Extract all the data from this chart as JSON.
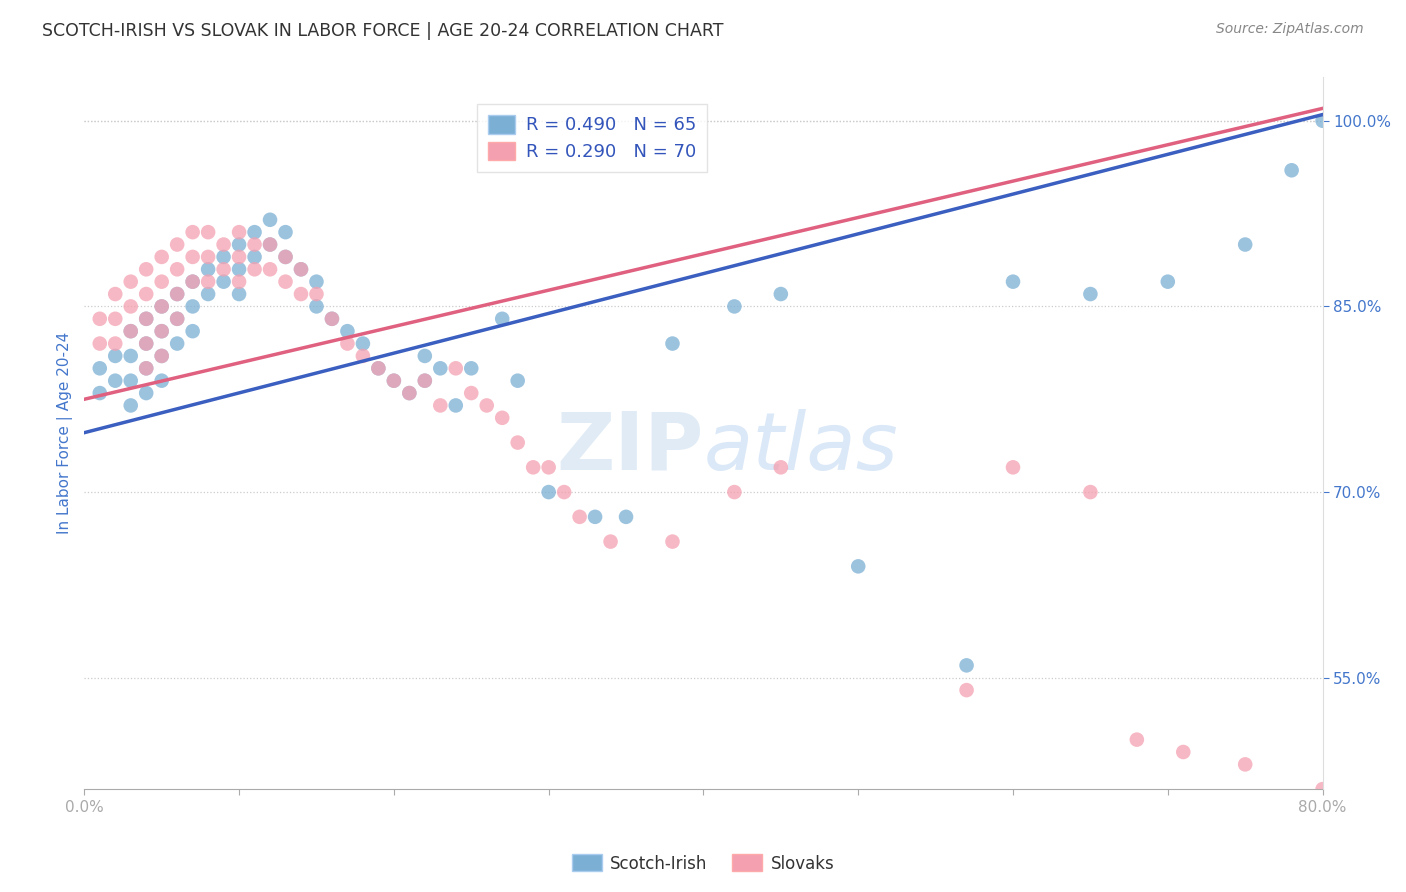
{
  "title": "SCOTCH-IRISH VS SLOVAK IN LABOR FORCE | AGE 20-24 CORRELATION CHART",
  "source": "Source: ZipAtlas.com",
  "ylabel": "In Labor Force | Age 20-24",
  "xlim": [
    0.0,
    0.8
  ],
  "ylim": [
    0.46,
    1.035
  ],
  "x_ticks": [
    0.0,
    0.1,
    0.2,
    0.3,
    0.4,
    0.5,
    0.6,
    0.7,
    0.8
  ],
  "x_tick_labels": [
    "0.0%",
    "",
    "",
    "",
    "",
    "",
    "",
    "",
    "80.0%"
  ],
  "y_ticks": [
    0.55,
    0.7,
    0.85,
    1.0
  ],
  "y_tick_labels": [
    "55.0%",
    "70.0%",
    "85.0%",
    "100.0%"
  ],
  "scotch_irish_color": "#7BAFD4",
  "slovak_color": "#F4A0B0",
  "scotch_irish_line_color": "#3B5FC0",
  "slovak_line_color": "#E06080",
  "legend_R_scotch": "R = 0.490",
  "legend_N_scotch": "N = 65",
  "legend_R_slovak": "R = 0.290",
  "legend_N_slovak": "N = 70",
  "si_line_x0": 0.0,
  "si_line_x1": 0.8,
  "si_line_y0": 0.748,
  "si_line_y1": 1.005,
  "sk_line_x0": 0.0,
  "sk_line_x1": 0.8,
  "sk_line_y0": 0.775,
  "sk_line_y1": 1.01,
  "scotch_irish_x": [
    0.01,
    0.01,
    0.02,
    0.02,
    0.03,
    0.03,
    0.03,
    0.03,
    0.04,
    0.04,
    0.04,
    0.04,
    0.05,
    0.05,
    0.05,
    0.05,
    0.06,
    0.06,
    0.06,
    0.07,
    0.07,
    0.07,
    0.08,
    0.08,
    0.09,
    0.09,
    0.1,
    0.1,
    0.1,
    0.11,
    0.11,
    0.12,
    0.12,
    0.13,
    0.13,
    0.14,
    0.15,
    0.15,
    0.16,
    0.17,
    0.18,
    0.19,
    0.2,
    0.21,
    0.22,
    0.22,
    0.23,
    0.24,
    0.25,
    0.27,
    0.28,
    0.3,
    0.33,
    0.35,
    0.38,
    0.42,
    0.45,
    0.5,
    0.57,
    0.6,
    0.65,
    0.7,
    0.75,
    0.78,
    0.8
  ],
  "scotch_irish_y": [
    0.8,
    0.78,
    0.81,
    0.79,
    0.83,
    0.81,
    0.79,
    0.77,
    0.84,
    0.82,
    0.8,
    0.78,
    0.85,
    0.83,
    0.81,
    0.79,
    0.86,
    0.84,
    0.82,
    0.87,
    0.85,
    0.83,
    0.88,
    0.86,
    0.89,
    0.87,
    0.9,
    0.88,
    0.86,
    0.91,
    0.89,
    0.92,
    0.9,
    0.91,
    0.89,
    0.88,
    0.87,
    0.85,
    0.84,
    0.83,
    0.82,
    0.8,
    0.79,
    0.78,
    0.81,
    0.79,
    0.8,
    0.77,
    0.8,
    0.84,
    0.79,
    0.7,
    0.68,
    0.68,
    0.82,
    0.85,
    0.86,
    0.64,
    0.56,
    0.87,
    0.86,
    0.87,
    0.9,
    0.96,
    1.0
  ],
  "slovak_x": [
    0.01,
    0.01,
    0.02,
    0.02,
    0.02,
    0.03,
    0.03,
    0.03,
    0.04,
    0.04,
    0.04,
    0.04,
    0.04,
    0.05,
    0.05,
    0.05,
    0.05,
    0.05,
    0.06,
    0.06,
    0.06,
    0.06,
    0.07,
    0.07,
    0.07,
    0.08,
    0.08,
    0.08,
    0.09,
    0.09,
    0.1,
    0.1,
    0.1,
    0.11,
    0.11,
    0.12,
    0.12,
    0.13,
    0.13,
    0.14,
    0.14,
    0.15,
    0.16,
    0.17,
    0.18,
    0.19,
    0.2,
    0.21,
    0.22,
    0.23,
    0.24,
    0.25,
    0.26,
    0.27,
    0.28,
    0.29,
    0.3,
    0.31,
    0.32,
    0.34,
    0.38,
    0.42,
    0.45,
    0.57,
    0.6,
    0.65,
    0.68,
    0.71,
    0.75,
    0.8
  ],
  "slovak_y": [
    0.84,
    0.82,
    0.86,
    0.84,
    0.82,
    0.87,
    0.85,
    0.83,
    0.88,
    0.86,
    0.84,
    0.82,
    0.8,
    0.89,
    0.87,
    0.85,
    0.83,
    0.81,
    0.9,
    0.88,
    0.86,
    0.84,
    0.91,
    0.89,
    0.87,
    0.91,
    0.89,
    0.87,
    0.9,
    0.88,
    0.91,
    0.89,
    0.87,
    0.9,
    0.88,
    0.9,
    0.88,
    0.89,
    0.87,
    0.88,
    0.86,
    0.86,
    0.84,
    0.82,
    0.81,
    0.8,
    0.79,
    0.78,
    0.79,
    0.77,
    0.8,
    0.78,
    0.77,
    0.76,
    0.74,
    0.72,
    0.72,
    0.7,
    0.68,
    0.66,
    0.66,
    0.7,
    0.72,
    0.54,
    0.72,
    0.7,
    0.5,
    0.49,
    0.48,
    0.46
  ],
  "background_color": "#FFFFFF",
  "grid_color": "#CCCCCC",
  "title_color": "#333333",
  "axis_label_color": "#4477CC",
  "right_axis_color": "#4477CC"
}
